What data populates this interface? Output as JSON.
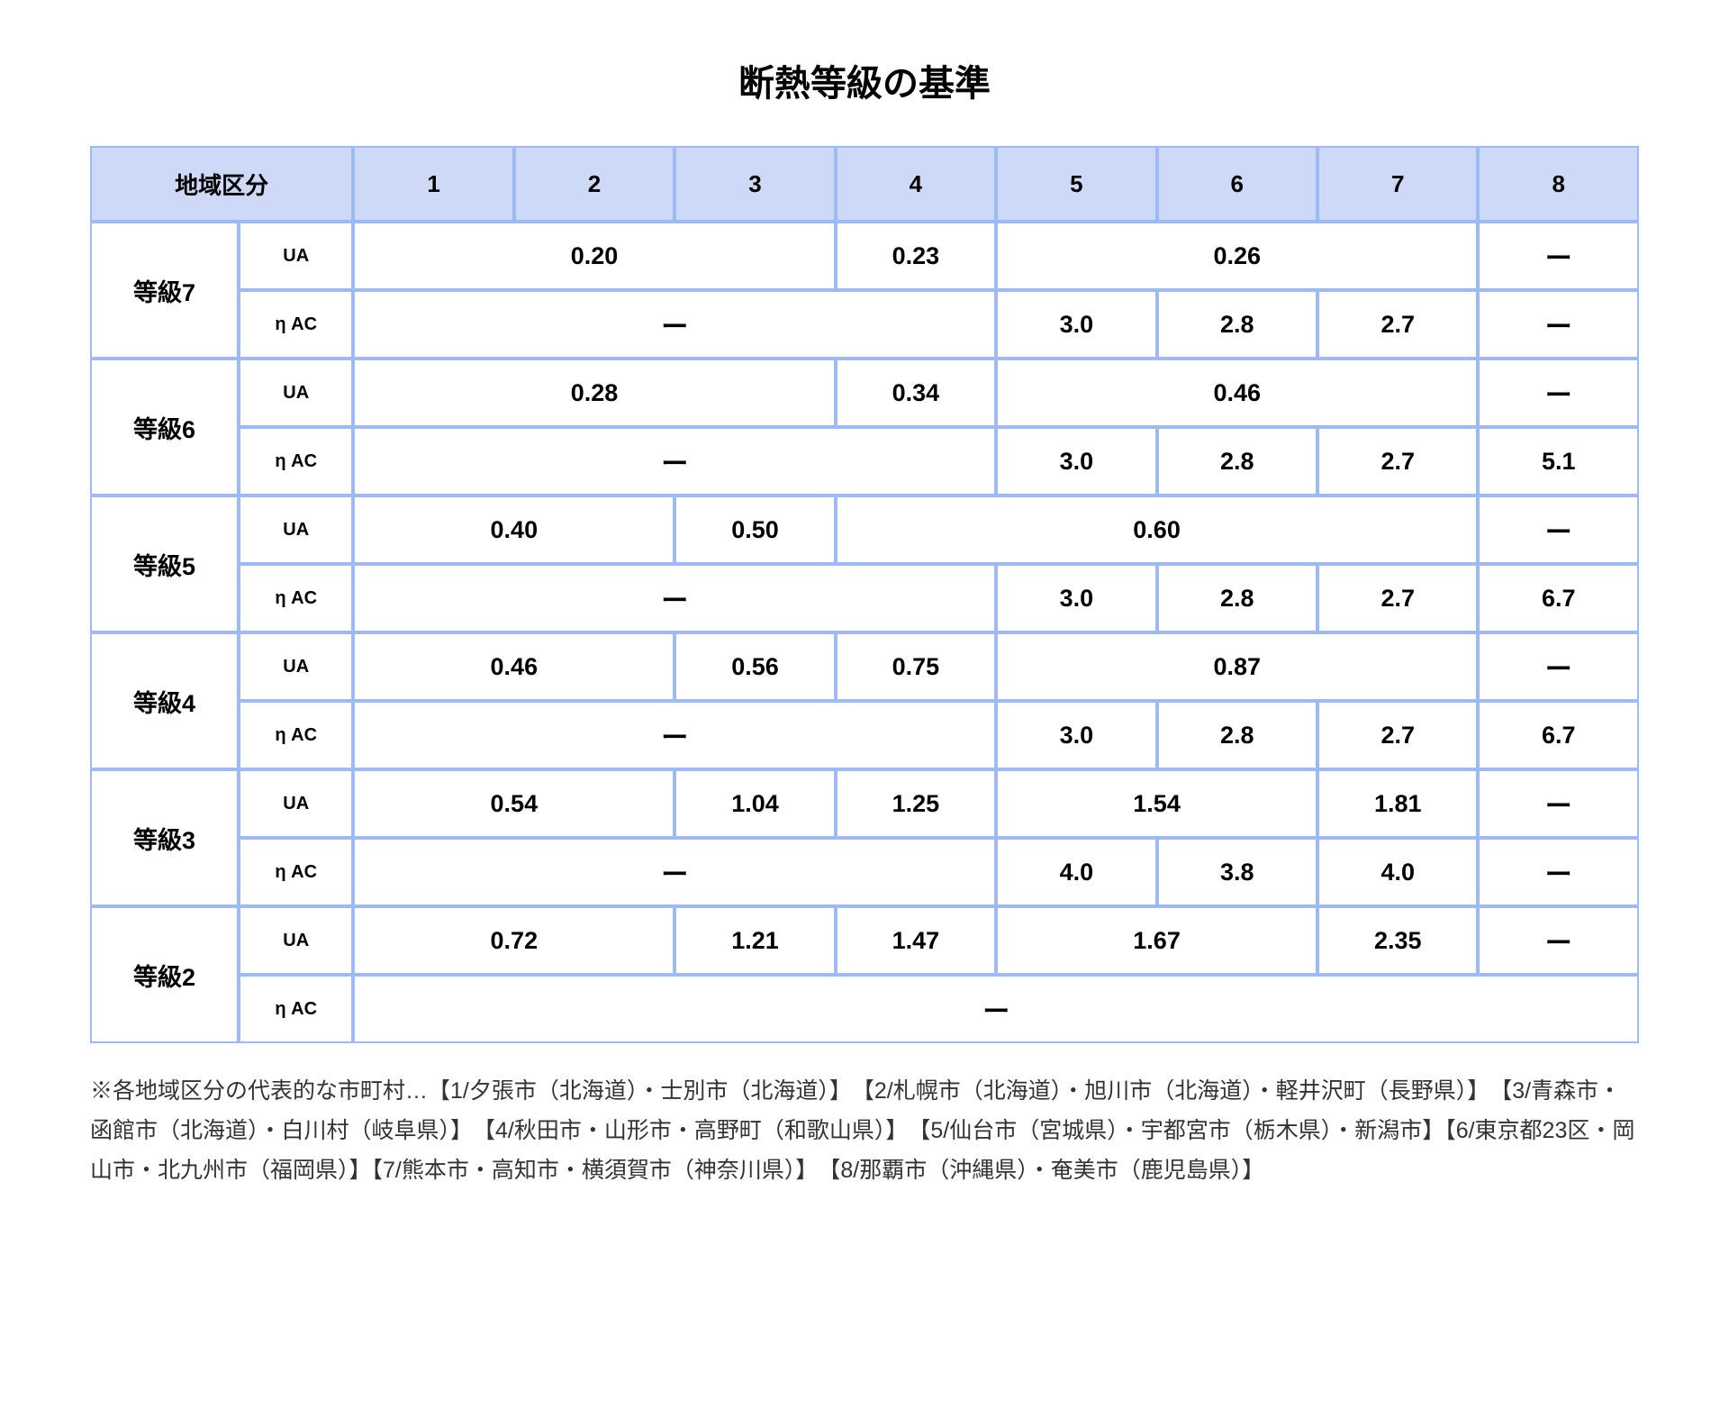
{
  "title": "断熱等級の基準",
  "header": {
    "corner": "地域区分",
    "cols": [
      "1",
      "2",
      "3",
      "4",
      "5",
      "6",
      "7",
      "8"
    ]
  },
  "metrics": {
    "ua": "UA",
    "nac": "η AC"
  },
  "dash": "ー",
  "grades": {
    "g7": {
      "label": "等級7",
      "ua": {
        "c1_3": "0.20",
        "c4": "0.23",
        "c5_7": "0.26"
      },
      "nac": {
        "c5": "3.0",
        "c6": "2.8",
        "c7": "2.7"
      }
    },
    "g6": {
      "label": "等級6",
      "ua": {
        "c1_3": "0.28",
        "c4": "0.34",
        "c5_7": "0.46"
      },
      "nac": {
        "c5": "3.0",
        "c6": "2.8",
        "c7": "2.7",
        "c8": "5.1"
      }
    },
    "g5": {
      "label": "等級5",
      "ua": {
        "c1_2": "0.40",
        "c3": "0.50",
        "c4_7": "0.60"
      },
      "nac": {
        "c5": "3.0",
        "c6": "2.8",
        "c7": "2.7",
        "c8": "6.7"
      }
    },
    "g4": {
      "label": "等級4",
      "ua": {
        "c1_2": "0.46",
        "c3": "0.56",
        "c4": "0.75",
        "c5_7": "0.87"
      },
      "nac": {
        "c5": "3.0",
        "c6": "2.8",
        "c7": "2.7",
        "c8": "6.7"
      }
    },
    "g3": {
      "label": "等級3",
      "ua": {
        "c1_2": "0.54",
        "c3": "1.04",
        "c4": "1.25",
        "c5_6": "1.54",
        "c7": "1.81"
      },
      "nac": {
        "c5": "4.0",
        "c6": "3.8",
        "c7": "4.0"
      }
    },
    "g2": {
      "label": "等級2",
      "ua": {
        "c1_2": "0.72",
        "c3": "1.21",
        "c4": "1.47",
        "c5_6": "1.67",
        "c7": "2.35"
      }
    }
  },
  "footnote": "※各地域区分の代表的な市町村…【1/夕張市（北海道）・士別市（北海道）】　【2/札幌市（北海道）・旭川市（北海道）・軽井沢町（長野県）】　【3/青森市・函館市（北海道）・白川村（岐阜県）】　【4/秋田市・山形市・高野町（和歌山県）】　【5/仙台市（宮城県）・宇都宮市（栃木県）・新潟市】【6/東京都23区・岡山市・北九州市（福岡県）】【7/熊本市・高知市・横須賀市（神奈川県）】　【8/那覇市（沖縄県）・奄美市（鹿児島県）】",
  "style": {
    "header_bg": "#cdd9f6",
    "border_color": "#9ebaf3",
    "body_bg": "#ffffff",
    "title_fontsize": 40,
    "header_fontsize": 26,
    "grade_fontsize": 27,
    "metric_fontsize": 20,
    "value_fontsize": 27,
    "footnote_fontsize": 25
  }
}
